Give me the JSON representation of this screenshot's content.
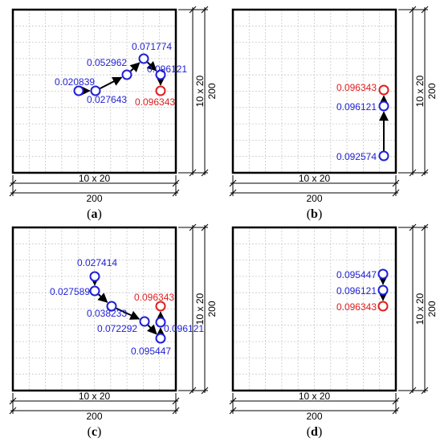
{
  "colors": {
    "search_point": "#1f1fd6",
    "optimum_point": "#e01e1e",
    "frame": "#000000",
    "grid": "#c8c8c8"
  },
  "panels": [
    {
      "id": "a",
      "caption_open": "(",
      "caption_letter": "a",
      "caption_close": ")",
      "grid_h_label": "10 x 20",
      "total_h_label": "200",
      "grid_v_label": "10 x 20",
      "total_v_label": "200",
      "path": [
        {
          "value": "0.020839",
          "optimum": false
        },
        {
          "value": "0.027643",
          "optimum": false
        },
        {
          "value": "0.052962",
          "optimum": false
        },
        {
          "value": "0.071774",
          "optimum": false
        },
        {
          "value": "0.096121",
          "optimum": false
        },
        {
          "value": "0.096343",
          "optimum": true
        }
      ]
    },
    {
      "id": "b",
      "caption_open": "(",
      "caption_letter": "b",
      "caption_close": ")",
      "grid_h_label": "10 x 20",
      "total_h_label": "200",
      "grid_v_label": "10 x 20",
      "total_v_label": "200",
      "path": [
        {
          "value": "0.092574",
          "optimum": false
        },
        {
          "value": "0.096121",
          "optimum": false
        },
        {
          "value": "0.096343",
          "optimum": true
        }
      ]
    },
    {
      "id": "c",
      "caption_open": "(",
      "caption_letter": "c",
      "caption_close": ")",
      "grid_h_label": "10 x 20",
      "total_h_label": "200",
      "grid_v_label": "10 x 20",
      "total_v_label": "200",
      "path": [
        {
          "value": "0.027414",
          "optimum": false
        },
        {
          "value": "0.027589",
          "optimum": false
        },
        {
          "value": "0.038233",
          "optimum": false
        },
        {
          "value": "0.072292",
          "optimum": false
        },
        {
          "value": "0.095447",
          "optimum": false
        },
        {
          "value": "0.096121",
          "optimum": false
        },
        {
          "value": "0.096343",
          "optimum": true
        }
      ]
    },
    {
      "id": "d",
      "caption_open": "(",
      "caption_letter": "d",
      "caption_close": ")",
      "grid_h_label": "10 x 20",
      "total_h_label": "200",
      "grid_v_label": "10 x 20",
      "total_v_label": "200",
      "path": [
        {
          "value": "0.095447",
          "optimum": false
        },
        {
          "value": "0.096121",
          "optimum": false
        },
        {
          "value": "0.096343",
          "optimum": true
        }
      ]
    }
  ]
}
